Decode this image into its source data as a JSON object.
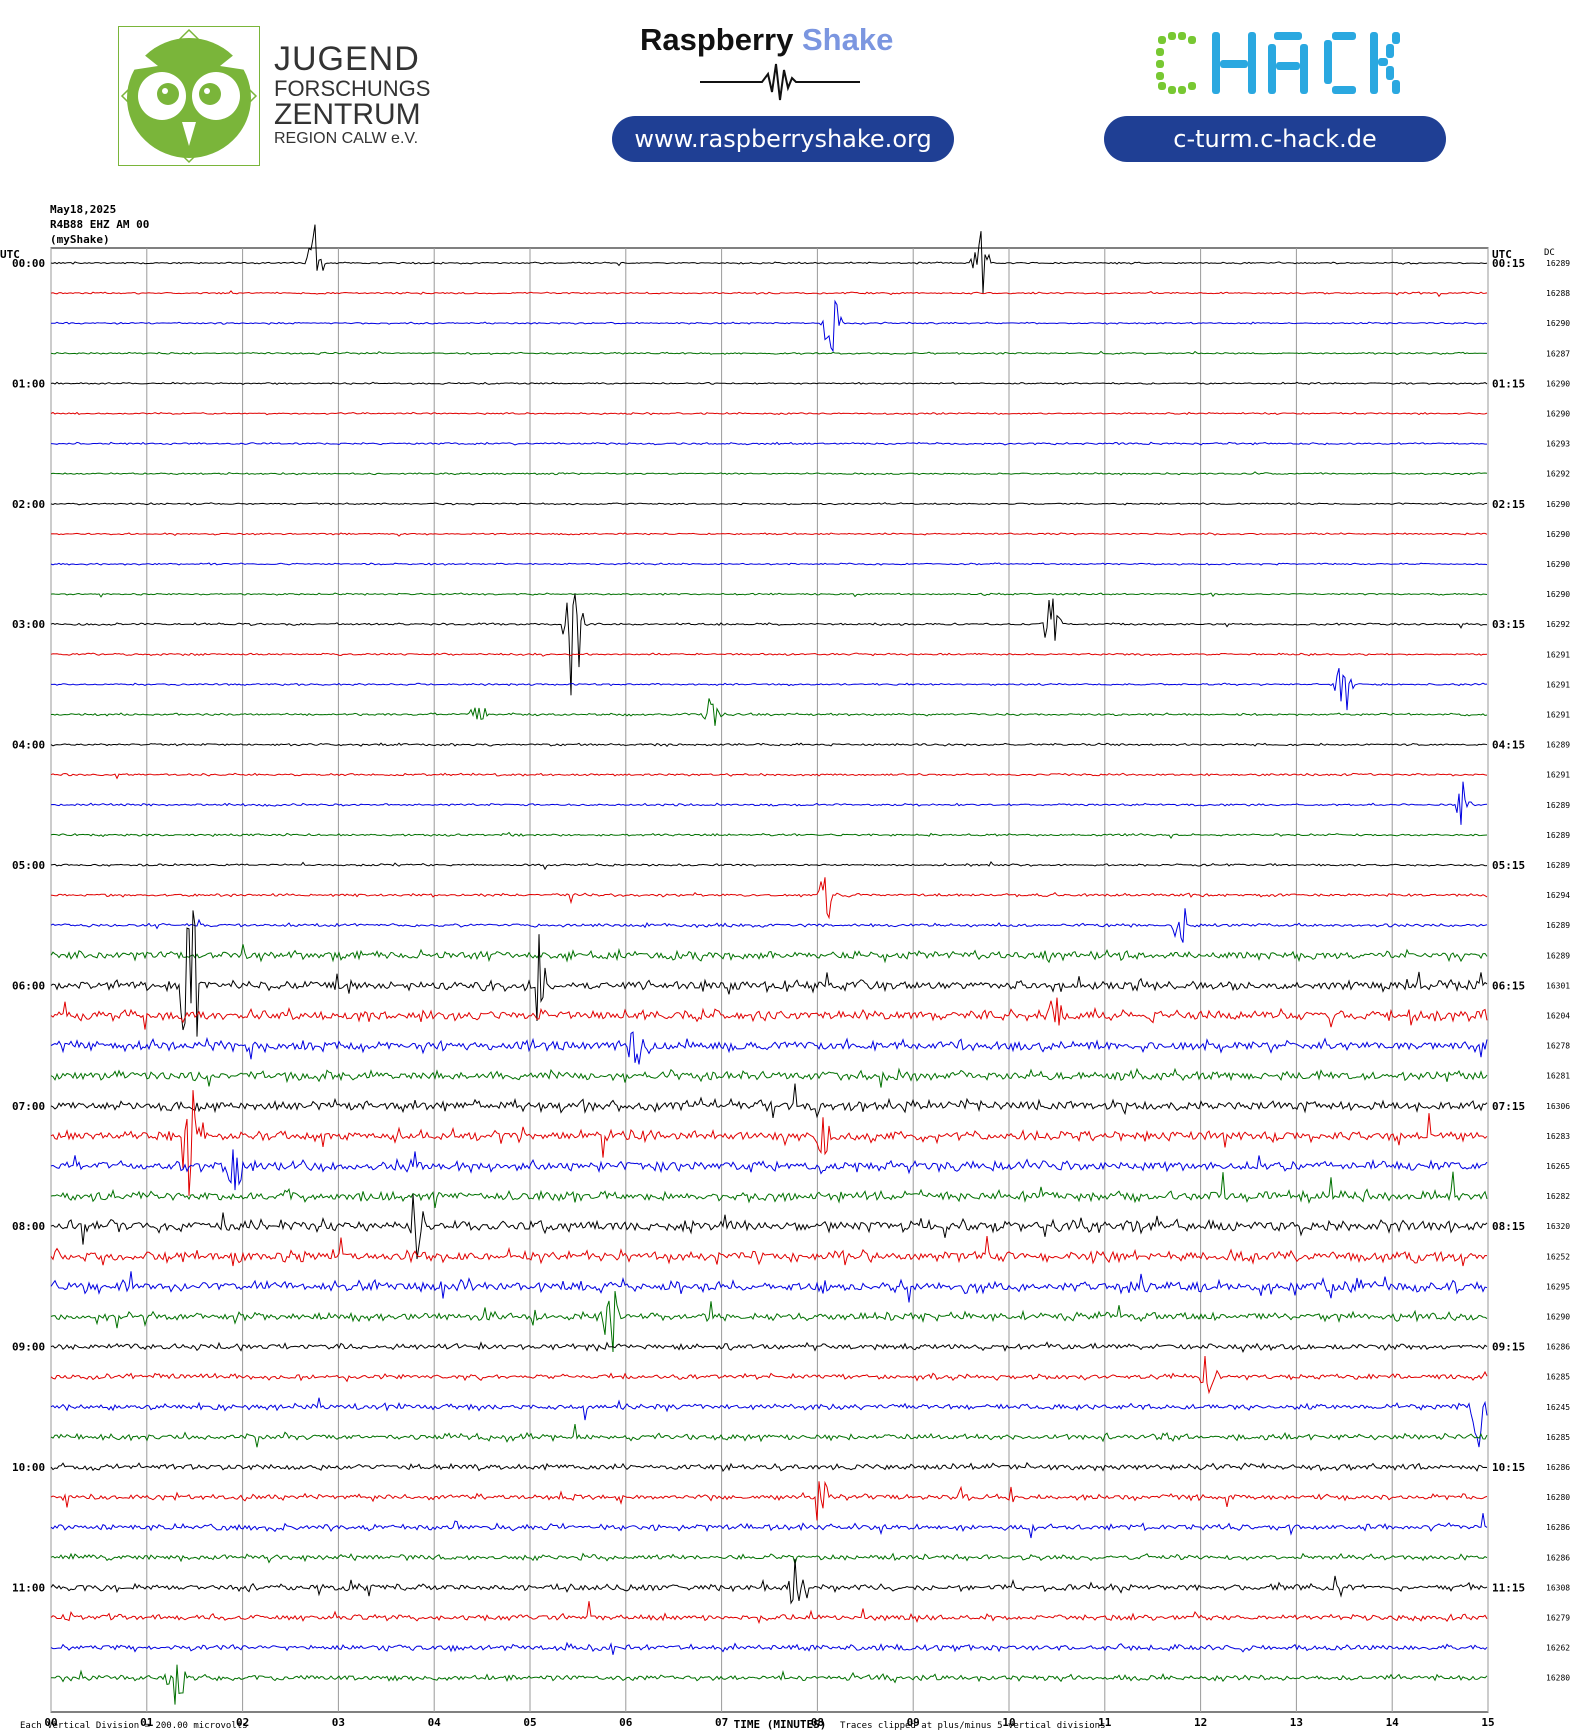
{
  "header": {
    "jfz": {
      "line1": "JUGEND",
      "line2": "FORSCHUNGS",
      "line3": "ZENTRUM",
      "line4": "REGION CALW e.V.",
      "color": "#7ab53a"
    },
    "rs": {
      "name_part1": "Raspberry",
      "name_part2": "Shake",
      "name_part2_color": "#7b96e0",
      "url": "www.raspberryshake.org"
    },
    "chack": {
      "logo": "CHACK",
      "color_left": "#78c832",
      "color_right": "#2aa8e0",
      "url": "c-turm.c-hack.de"
    },
    "pill_color": "#1f3f94"
  },
  "chart_data": {
    "type": "line",
    "title_lines": [
      "May18,2025",
      "R4B88 EHZ AM 00",
      "(myShake)"
    ],
    "left_axis_label": "UTC",
    "right_axis_label": "UTC",
    "dc_label": "DC",
    "xlabel": "TIME (MINUTES)",
    "x_ticks": [
      "00",
      "01",
      "02",
      "03",
      "04",
      "05",
      "06",
      "07",
      "08",
      "09",
      "10",
      "11",
      "12",
      "13",
      "14",
      "15"
    ],
    "xlim": [
      0,
      15
    ],
    "left_hour_labels": [
      "00:00",
      "01:00",
      "02:00",
      "03:00",
      "04:00",
      "05:00",
      "06:00",
      "07:00",
      "08:00",
      "09:00",
      "10:00",
      "11:00"
    ],
    "right_hour_labels": [
      "00:15",
      "01:15",
      "02:15",
      "03:15",
      "04:15",
      "05:15",
      "06:15",
      "07:15",
      "08:15",
      "09:15",
      "10:15",
      "11:15"
    ],
    "dc_values": [
      16289,
      16288,
      16290,
      16287,
      16290,
      16290,
      16293,
      16292,
      16290,
      16290,
      16290,
      16290,
      16292,
      16291,
      16291,
      16291,
      16289,
      16291,
      16289,
      16289,
      16289,
      16294,
      16289,
      16289,
      16301,
      16204,
      16278,
      16281,
      16306,
      16283,
      16265,
      16282,
      16320,
      16252,
      16295,
      16290,
      16286,
      16285,
      16245,
      16285,
      16286,
      16280,
      16286,
      16286,
      16308,
      16279,
      16262,
      16280
    ],
    "trace_colors": [
      "#000000",
      "#e00000",
      "#0000e0",
      "#007000"
    ],
    "footer_left": "Each Vertical Division =  200.00 microvolts",
    "footer_right": "Traces clipped at plus/minus 5 vertical divisions",
    "activity": [
      0.3,
      0.3,
      0.3,
      0.3,
      0.3,
      0.3,
      0.35,
      0.3,
      0.3,
      0.3,
      0.3,
      0.3,
      0.4,
      0.35,
      0.35,
      0.4,
      0.4,
      0.4,
      0.4,
      0.4,
      0.4,
      0.5,
      0.6,
      1.6,
      1.8,
      1.9,
      1.9,
      1.7,
      1.9,
      1.8,
      1.8,
      1.7,
      2.0,
      1.9,
      2.0,
      1.4,
      1.1,
      1.0,
      1.0,
      1.1,
      1.1,
      1.0,
      1.1,
      1.0,
      1.2,
      1.1,
      1.1,
      1.0
    ],
    "events": [
      {
        "row": 0,
        "min": 2.75,
        "amp": 34
      },
      {
        "row": 0,
        "min": 9.7,
        "amp": 30
      },
      {
        "row": 2,
        "min": 8.15,
        "amp": 40
      },
      {
        "row": 12,
        "min": 5.45,
        "amp": 100
      },
      {
        "row": 12,
        "min": 10.45,
        "amp": 30
      },
      {
        "row": 14,
        "min": 13.5,
        "amp": 30
      },
      {
        "row": 15,
        "min": 4.45,
        "amp": 15
      },
      {
        "row": 15,
        "min": 6.9,
        "amp": 18
      },
      {
        "row": 18,
        "min": 14.75,
        "amp": 20
      },
      {
        "row": 21,
        "min": 8.1,
        "amp": 22
      },
      {
        "row": 22,
        "min": 11.8,
        "amp": 40
      },
      {
        "row": 24,
        "min": 1.45,
        "amp": 110
      },
      {
        "row": 24,
        "min": 5.1,
        "amp": 40
      },
      {
        "row": 25,
        "min": 10.5,
        "amp": 30
      },
      {
        "row": 26,
        "min": 6.1,
        "amp": 30
      },
      {
        "row": 29,
        "min": 1.45,
        "amp": 70
      },
      {
        "row": 29,
        "min": 8.05,
        "amp": 40
      },
      {
        "row": 30,
        "min": 1.9,
        "amp": 30
      },
      {
        "row": 32,
        "min": 3.8,
        "amp": 40
      },
      {
        "row": 35,
        "min": 5.85,
        "amp": 35
      },
      {
        "row": 37,
        "min": 12.1,
        "amp": 35
      },
      {
        "row": 38,
        "min": 14.9,
        "amp": 30
      },
      {
        "row": 41,
        "min": 8.05,
        "amp": 30
      },
      {
        "row": 44,
        "min": 7.8,
        "amp": 40
      },
      {
        "row": 47,
        "min": 1.3,
        "amp": 35
      }
    ]
  }
}
